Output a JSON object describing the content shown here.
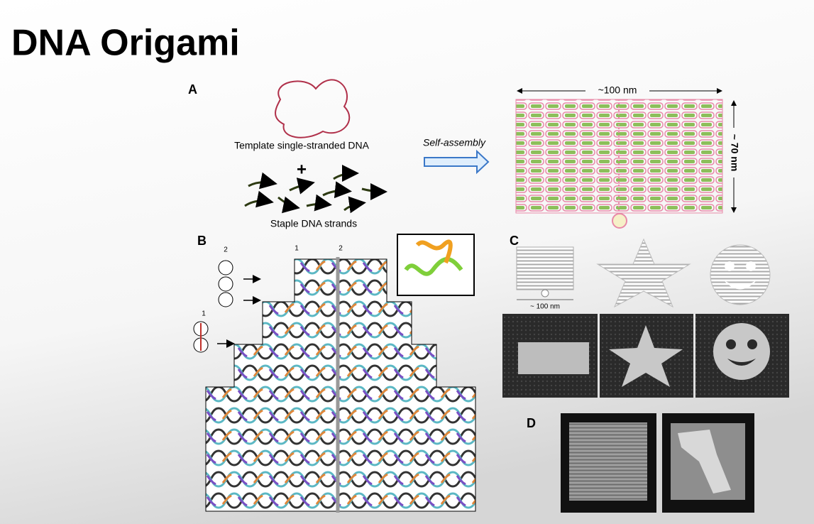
{
  "title": "DNA Origami",
  "panel_a": {
    "label": "A",
    "template_label": "Template single-stranded DNA",
    "plus": "+",
    "staples_label": "Staple DNA strands",
    "arrow_label": "Self-assembly",
    "width_label": "~100 nm",
    "height_label": "~ 70 nm"
  },
  "panel_b": {
    "label": "B",
    "circle_numbers": [
      "2",
      "1"
    ],
    "helix_numbers": [
      "1",
      "2"
    ]
  },
  "panel_c": {
    "label": "C",
    "scale_label": "~ 100 nm"
  },
  "panel_d": {
    "label": "D"
  }
}
